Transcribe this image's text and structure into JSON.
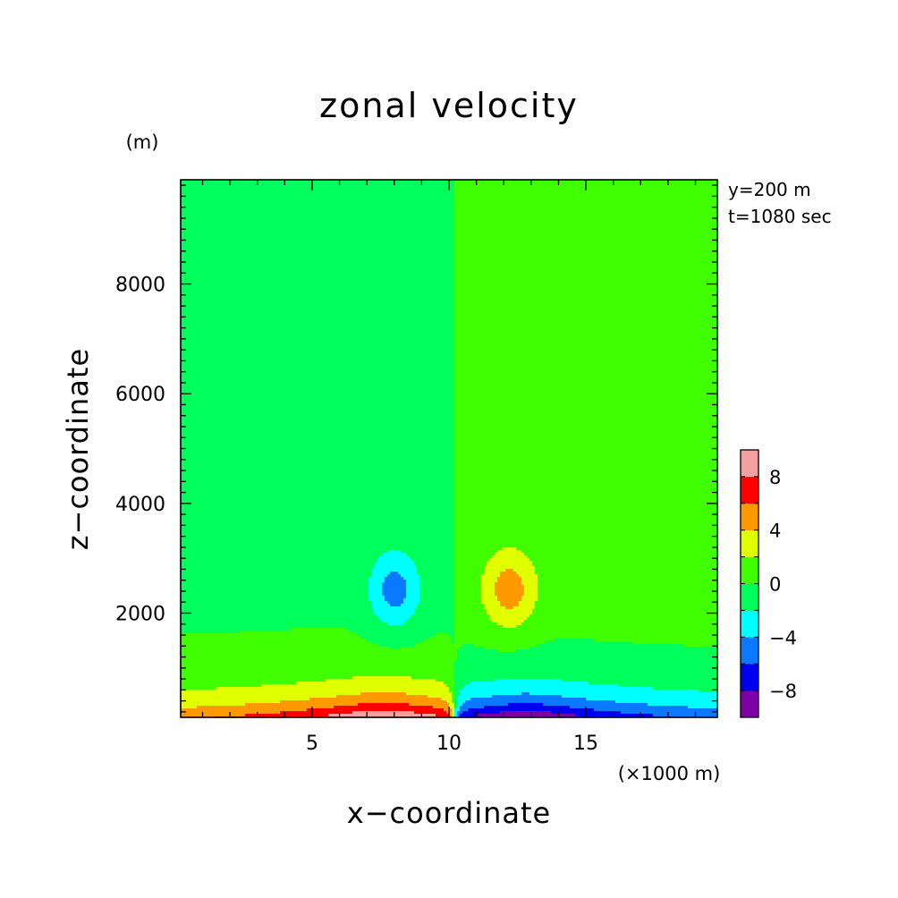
{
  "chart_data": {
    "type": "heatmap",
    "title": "zonal velocity",
    "xlabel": "x−coordinate",
    "ylabel": "z−coordinate",
    "x_unit": "(×1000 m)",
    "y_unit": "(m)",
    "xlim": [
      0.2,
      19.8
    ],
    "ylim": [
      100,
      9900
    ],
    "x_ticks": [
      5,
      10,
      15
    ],
    "x_tick_labels": [
      "5",
      "10",
      "15"
    ],
    "y_ticks": [
      2000,
      4000,
      6000,
      8000
    ],
    "y_tick_labels": [
      "2000",
      "4000",
      "6000",
      "8000"
    ],
    "annotations": [
      "y=200 m",
      "t=1080 sec"
    ],
    "colorbar": {
      "levels": [
        -10,
        -8,
        -6,
        -4,
        -2,
        0,
        2,
        4,
        6,
        8,
        10
      ],
      "colors": [
        "#7d00a6",
        "#0000f0",
        "#0a78ff",
        "#00ffff",
        "#00ff5a",
        "#40ff00",
        "#e0ff00",
        "#ff9900",
        "#ff0000",
        "#f4a0a0"
      ],
      "tick_values": [
        -8,
        -4,
        0,
        4,
        8
      ],
      "tick_labels": [
        "−8",
        "−4",
        "0",
        "4",
        "8"
      ]
    },
    "field": {
      "background_left": 0,
      "background_right": 1,
      "features": [
        {
          "kind": "updraft-core-west",
          "x": 8.0,
          "z": 2400,
          "value": -3
        },
        {
          "kind": "updraft-core-east",
          "x": 12.2,
          "z": 2400,
          "value": 3
        },
        {
          "kind": "surface-outflow-west",
          "x": 7.7,
          "z": 100,
          "value": 9
        },
        {
          "kind": "surface-outflow-east",
          "x": 12.7,
          "z": 100,
          "value": -9
        }
      ]
    }
  }
}
